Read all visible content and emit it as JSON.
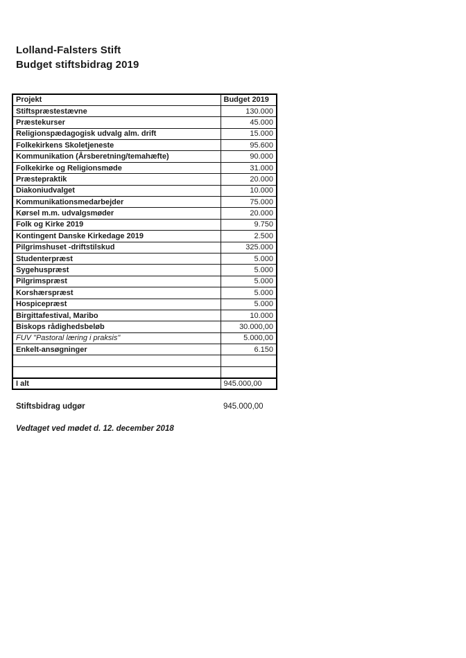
{
  "colors": {
    "text": "#1a1a1a",
    "border": "#000000",
    "background": "#ffffff"
  },
  "page": {
    "title_line1": "Lolland-Falsters Stift",
    "title_line2": "Budget stiftsbidrag 2019"
  },
  "table": {
    "headers": {
      "project": "Projekt",
      "budget": "Budget 2019"
    },
    "rows": [
      {
        "label": "Stiftspræstestævne",
        "value": "130.000"
      },
      {
        "label": "Præstekurser",
        "value": "45.000"
      },
      {
        "label": "Religionspædagogisk udvalg alm. drift",
        "value": "15.000"
      },
      {
        "label": "Folkekirkens Skoletjeneste",
        "value": "95.600"
      },
      {
        "label": "Kommunikation (Årsberetning/temahæfte)",
        "value": "90.000"
      },
      {
        "label": "Folkekirke og Religionsmøde",
        "value": "31.000"
      },
      {
        "label": "Præstepraktik",
        "value": "20.000"
      },
      {
        "label": "Diakoniudvalget",
        "value": "10.000"
      },
      {
        "label": "Kommunikationsmedarbejder",
        "value": "75.000"
      },
      {
        "label": "Kørsel m.m. udvalgsmøder",
        "value": "20.000"
      },
      {
        "label": "Folk og Kirke 2019",
        "value": "9.750"
      },
      {
        "label": "Kontingent Danske Kirkedage 2019",
        "value": "2.500"
      },
      {
        "label": "Pilgrimshuset -driftstilskud",
        "value": "325.000"
      },
      {
        "label": "Studenterpræst",
        "value": "5.000"
      },
      {
        "label": "Sygehuspræst",
        "value": "5.000"
      },
      {
        "label": "Pilgrimspræst",
        "value": "5.000"
      },
      {
        "label": "Korshærspræst",
        "value": "5.000"
      },
      {
        "label": "Hospicepræst",
        "value": "5.000"
      },
      {
        "label": "Birgittafestival, Maribo",
        "value": "10.000"
      },
      {
        "label": "Biskops rådighedsbeløb",
        "value": "30.000,00"
      },
      {
        "label": "FUV \"Pastoral læring i praksis\"",
        "value": "5.000,00",
        "italic": true
      },
      {
        "label": "Enkelt-ansøgninger",
        "value": "6.150"
      },
      {
        "label": "",
        "value": ""
      },
      {
        "label": "",
        "value": ""
      }
    ],
    "total": {
      "label": "I alt",
      "value": "945.000,00"
    }
  },
  "footer": {
    "summary_label": "Stiftsbidrag udgør",
    "summary_value": "945.000,00",
    "note": "Vedtaget ved mødet d. 12. december 2018"
  }
}
